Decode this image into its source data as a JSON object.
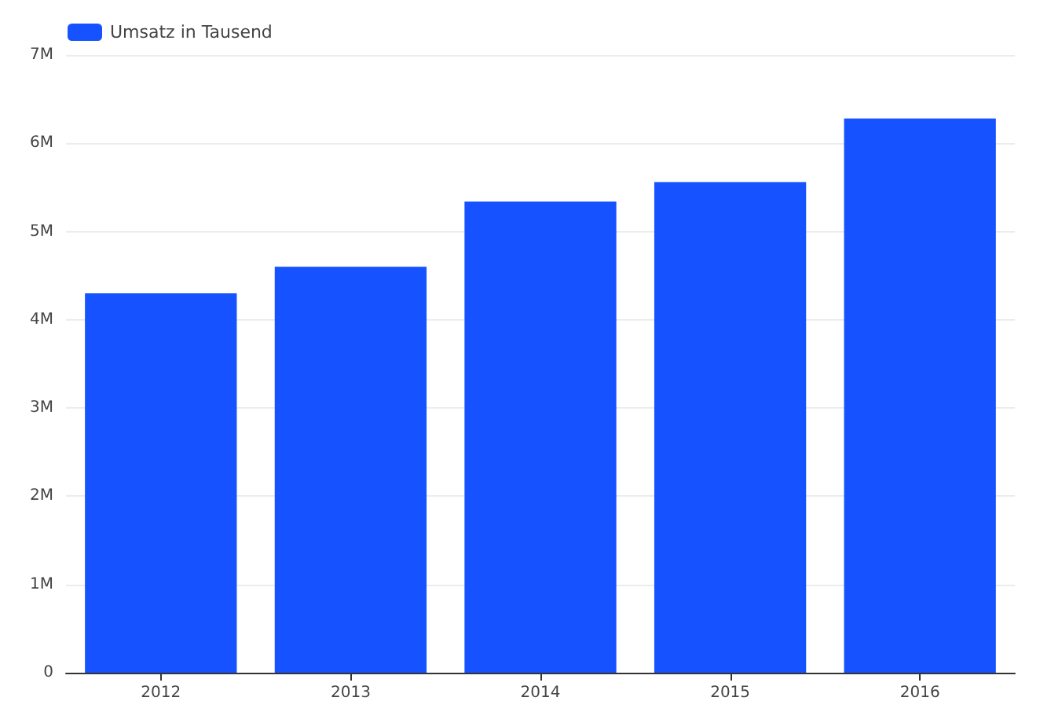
{
  "chart_data": {
    "type": "bar",
    "categories": [
      "2012",
      "2013",
      "2014",
      "2015",
      "2016"
    ],
    "series": [
      {
        "name": "Umsatz in Tausend",
        "color": "#1652ff",
        "values": [
          4300000,
          4600000,
          5340000,
          5560000,
          6280000
        ]
      }
    ],
    "ylim": [
      0,
      7000000
    ],
    "yticks": [
      {
        "value": 0,
        "label": "0"
      },
      {
        "value": 1000000,
        "label": "1M"
      },
      {
        "value": 2000000,
        "label": "2M"
      },
      {
        "value": 3000000,
        "label": "3M"
      },
      {
        "value": 4000000,
        "label": "4M"
      },
      {
        "value": 5000000,
        "label": "5M"
      },
      {
        "value": 6000000,
        "label": "6M"
      },
      {
        "value": 7000000,
        "label": "7M"
      }
    ],
    "grid": "y",
    "legend": "top left"
  }
}
